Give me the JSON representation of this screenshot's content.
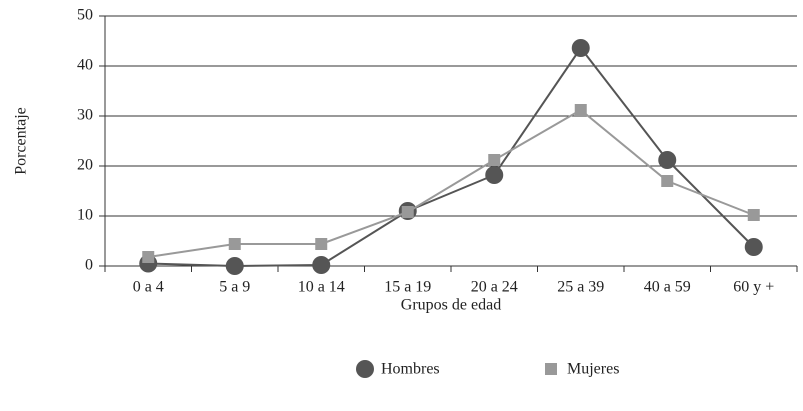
{
  "chart_data": {
    "type": "line",
    "x_label": "Grupos de edad",
    "y_label": "Porcentaje",
    "categories": [
      "0 a 4",
      "5 a 9",
      "10 a 14",
      "15 a 19",
      "20 a 24",
      "25 a 39",
      "40 a 59",
      "60 y +"
    ],
    "series": [
      {
        "name": "Hombres",
        "color": "#555555",
        "marker": "circle",
        "values": [
          0.5,
          0,
          0.2,
          11,
          18.2,
          43.6,
          21.2,
          3.8
        ]
      },
      {
        "name": "Mujeres",
        "color": "#999999",
        "marker": "square",
        "values": [
          1.8,
          4.4,
          4.4,
          10.8,
          21.2,
          31.2,
          17,
          10.2
        ]
      }
    ],
    "ylim": [
      0,
      50
    ],
    "yticks": [
      0,
      10,
      20,
      30,
      40,
      50
    ],
    "grid": true,
    "legend": "bottom"
  }
}
